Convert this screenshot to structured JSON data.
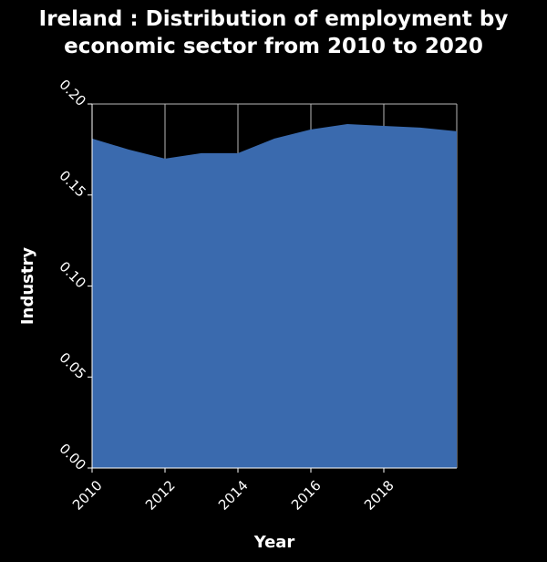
{
  "chart_data": {
    "type": "area",
    "title_line1": "Ireland : Distribution of employment by",
    "title_line2": "economic sector from 2010 to 2020",
    "xlabel": "Year",
    "ylabel": "Industry",
    "xlim": [
      2010,
      2020
    ],
    "ylim": [
      0,
      0.2
    ],
    "x_ticks": [
      2010,
      2012,
      2014,
      2016,
      2018
    ],
    "x_tick_labels": [
      "2010",
      "2012",
      "2014",
      "2016",
      "2018"
    ],
    "y_ticks": [
      0,
      0.05,
      0.1,
      0.15,
      0.2
    ],
    "y_tick_labels": [
      "0.00",
      "0.05",
      "0.10",
      "0.15",
      "0.20"
    ],
    "grid": true,
    "fill_color": "#3a6aae",
    "background_color": "#000000",
    "x": [
      2010,
      2011,
      2012,
      2013,
      2014,
      2015,
      2016,
      2017,
      2018,
      2019,
      2020
    ],
    "series": [
      {
        "values": [
          0.181,
          0.175,
          0.17,
          0.173,
          0.173,
          0.181,
          0.186,
          0.189,
          0.188,
          0.187,
          0.185
        ]
      }
    ]
  }
}
